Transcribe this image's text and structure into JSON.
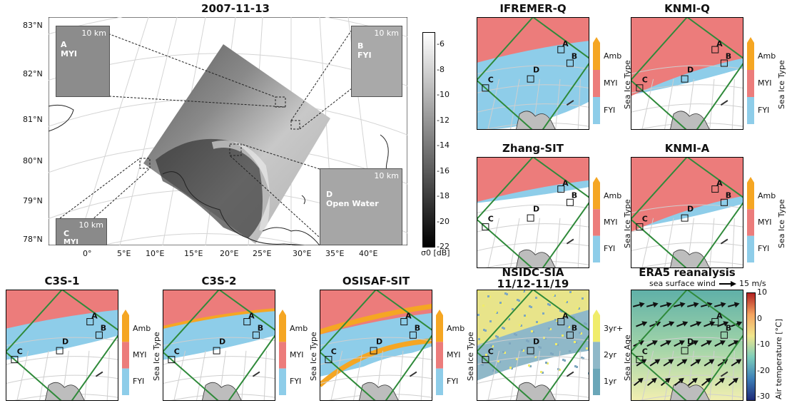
{
  "main": {
    "title": "2007-11-13",
    "lat_labels": [
      "83°N",
      "82°N",
      "81°N",
      "80°N",
      "79°N",
      "78°N"
    ],
    "lon_labels": [
      "0°",
      "5°E",
      "10°E",
      "15°E",
      "20°E",
      "25°E",
      "30°E",
      "35°E",
      "40°E"
    ],
    "insets": [
      {
        "letter": "A",
        "type": "MYI",
        "scale": "10 km"
      },
      {
        "letter": "B",
        "type": "FYI",
        "scale": "10 km"
      },
      {
        "letter": "C",
        "type": "MYI",
        "scale": "10 km"
      },
      {
        "letter": "D",
        "type": "Open Water",
        "scale": "10 km"
      }
    ],
    "colorbar": {
      "ticks": [
        "-6",
        "-8",
        "-10",
        "-12",
        "-14",
        "-16",
        "-18",
        "-20",
        "-22"
      ],
      "label": "σ0 [dB]"
    }
  },
  "type_cbar": {
    "ticks": [
      "Amb",
      "MYI",
      "FYI"
    ],
    "label": "Sea Ice Type"
  },
  "age_cbar": {
    "ticks": [
      "3yr+",
      "2yr",
      "1yr"
    ],
    "label": "Sea Ice Age"
  },
  "temp_cbar": {
    "ticks": [
      "10",
      "0",
      "-10",
      "-20",
      "-30"
    ],
    "label": "Air temperature [°C]"
  },
  "panels": [
    {
      "id": "ifremer",
      "title": "IFREMER-Q"
    },
    {
      "id": "knmiq",
      "title": "KNMI-Q"
    },
    {
      "id": "zhang",
      "title": "Zhang-SIT"
    },
    {
      "id": "knmia",
      "title": "KNMI-A"
    },
    {
      "id": "c3s1",
      "title": "C3S-1"
    },
    {
      "id": "c3s2",
      "title": "C3S-2"
    },
    {
      "id": "osisaf",
      "title": "OSISAF-SIT"
    },
    {
      "id": "nsidc",
      "title": "NSIDC-SIA",
      "subtitle": "11/12-11/19"
    },
    {
      "id": "era5",
      "title": "ERA5 reanalysis",
      "wind_label": "sea surface wind",
      "wind_scale": "15 m/s"
    }
  ],
  "site_letters": [
    "A",
    "B",
    "C",
    "D"
  ],
  "colors": {
    "myi": "#ec7c7b",
    "fyi": "#8ecde9",
    "amb": "#f5a623",
    "land": "#bdbdbd",
    "frame": "#2f8a3a",
    "sar_dark": "#3a3a3a"
  }
}
